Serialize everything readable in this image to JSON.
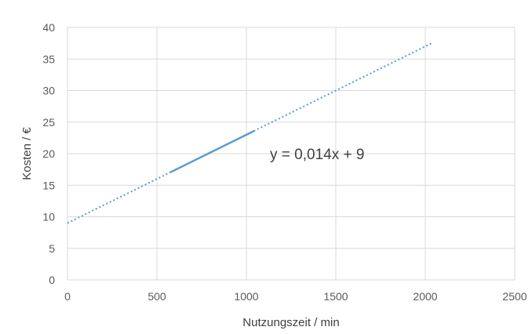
{
  "chart_data": {
    "type": "line",
    "xlabel": "Nutzungszeit / min",
    "ylabel": "Kosten / €",
    "xlim": [
      0,
      2500
    ],
    "ylim": [
      0,
      40
    ],
    "x_ticks": [
      0,
      500,
      1000,
      1500,
      2000,
      2500
    ],
    "y_ticks": [
      0,
      5,
      10,
      15,
      20,
      25,
      30,
      35,
      40
    ],
    "grid": true,
    "series": [
      {
        "style": "solid",
        "color": "#5b9bd5",
        "x": [
          580,
          1040
        ],
        "y": [
          17.12,
          23.56
        ]
      }
    ],
    "trendline": {
      "style": "dotted",
      "color": "#5b9bd5",
      "slope": 0.014,
      "intercept": 9,
      "x_range": [
        0,
        2040
      ],
      "equation_label": "y = 0,014x + 9"
    }
  }
}
